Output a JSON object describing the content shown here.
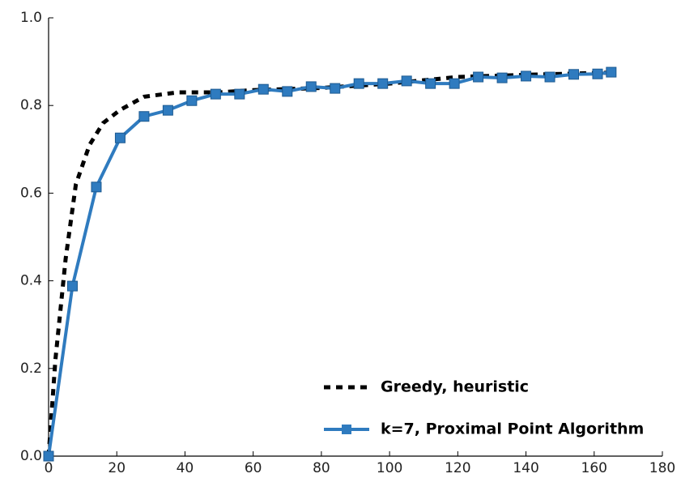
{
  "chart_data": {
    "type": "line",
    "xlim": [
      0,
      180
    ],
    "xticks": [
      0,
      20,
      40,
      60,
      80,
      100,
      120,
      140,
      160,
      180
    ],
    "ylim": [
      0,
      1
    ],
    "yticks": [
      {
        "value": 0,
        "label": "0.0"
      },
      0.2,
      0.4,
      0.6,
      0.8,
      {
        "value": 1,
        "label": "1.0"
      }
    ],
    "legend": "lower right",
    "series": [
      {
        "name": "Greedy, heuristic",
        "color": "#000000",
        "dashed": true,
        "marker": false,
        "x": [
          0,
          2,
          5,
          8,
          12,
          16,
          21,
          28,
          38,
          50,
          60,
          80,
          100,
          120,
          140,
          165
        ],
        "values": [
          0,
          0.22,
          0.45,
          0.62,
          0.71,
          0.76,
          0.79,
          0.82,
          0.83,
          0.83,
          0.835,
          0.84,
          0.85,
          0.865,
          0.87,
          0.875
        ]
      },
      {
        "name": "k=7, Proximal Point Algorithm",
        "color": "#2f7bbf",
        "dashed": false,
        "marker": true,
        "x": [
          0,
          7,
          14,
          21,
          28,
          35,
          42,
          49,
          56,
          63,
          70,
          77,
          84,
          91,
          98,
          105,
          112,
          119,
          126,
          133,
          140,
          147,
          154,
          161,
          165
        ],
        "values": [
          0,
          0.388,
          0.614,
          0.726,
          0.775,
          0.789,
          0.811,
          0.826,
          0.826,
          0.837,
          0.832,
          0.843,
          0.839,
          0.85,
          0.85,
          0.856,
          0.85,
          0.85,
          0.865,
          0.863,
          0.867,
          0.865,
          0.871,
          0.872,
          0.876
        ]
      }
    ]
  }
}
